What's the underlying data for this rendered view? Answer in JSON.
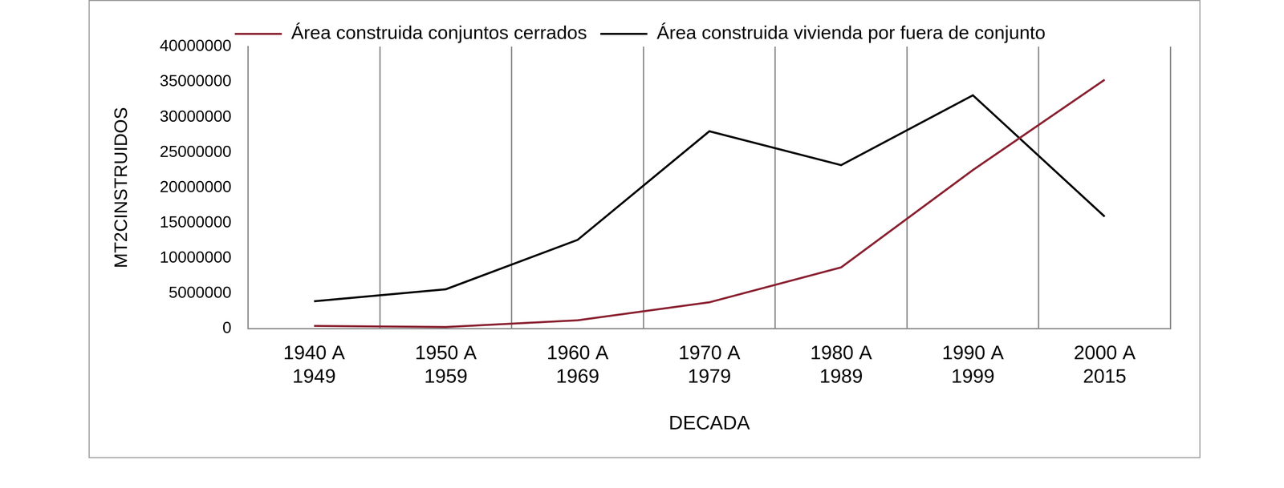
{
  "chart_data": {
    "type": "line",
    "x_label": "DECADA",
    "y_label": "MT2CINSTRUIDOS",
    "categories": [
      "1940 A 1949",
      "1950 A 1959",
      "1960 A 1969",
      "1970 A 1979",
      "1980 A 1989",
      "1990 A 1999",
      "2000 A 2015"
    ],
    "series": [
      {
        "name": "Área construida conjuntos cerrados",
        "color": "#8b2332",
        "values": [
          400000,
          250000,
          1200000,
          3750000,
          8700000,
          22500000,
          35300000
        ]
      },
      {
        "name": "Área construida vivienda por fuera de conjunto",
        "color": "#000000",
        "values": [
          3900000,
          5600000,
          12600000,
          28000000,
          23200000,
          33100000,
          15900000
        ]
      }
    ],
    "ylim": [
      0,
      40000000
    ],
    "yticks": [
      0,
      5000000,
      10000000,
      15000000,
      20000000,
      25000000,
      30000000,
      35000000,
      40000000
    ],
    "grid": "x",
    "legend": "top"
  }
}
